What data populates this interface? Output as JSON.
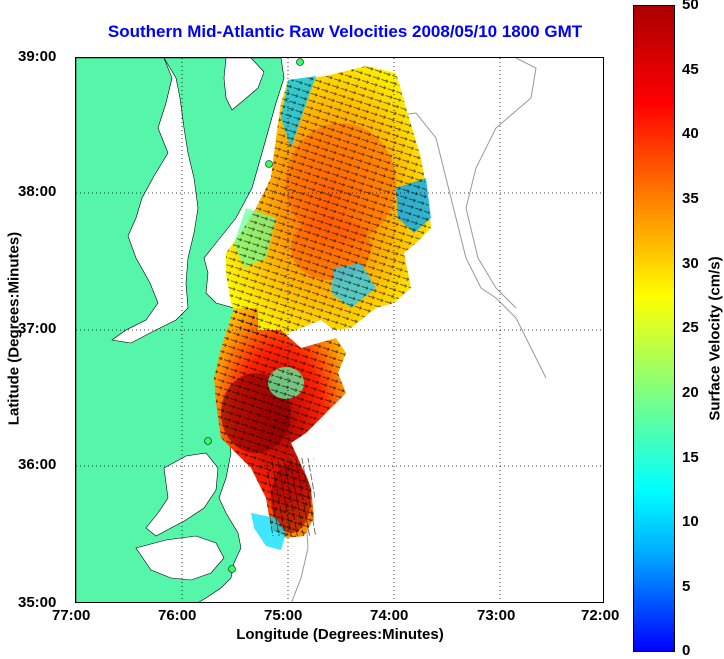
{
  "map": {
    "title": "Southern Mid-Atlantic Raw Velocities 2008/05/10 1800 GMT",
    "xlabel": "Longitude (Degrees:Minutes)",
    "ylabel": "Latitude (Degrees:Minutes)",
    "x_ticks": [
      "77:00",
      "76:00",
      "75:00",
      "74:00",
      "73:00",
      "72:00"
    ],
    "y_ticks": [
      "39:00",
      "38:00",
      "37:00",
      "36:00",
      "35:00"
    ],
    "land_color": "#55f5aa",
    "title_color": "#0000ff"
  },
  "colorbar": {
    "label": "Surface Velocity (cm/s)",
    "ticks": [
      "50",
      "45",
      "40",
      "35",
      "30",
      "25",
      "20",
      "15",
      "10",
      "5",
      "0"
    ],
    "range": [
      0,
      50
    ],
    "colors": [
      "#0000ff",
      "#00ffff",
      "#ffff00",
      "#ff0000",
      "#aa0000"
    ]
  }
}
